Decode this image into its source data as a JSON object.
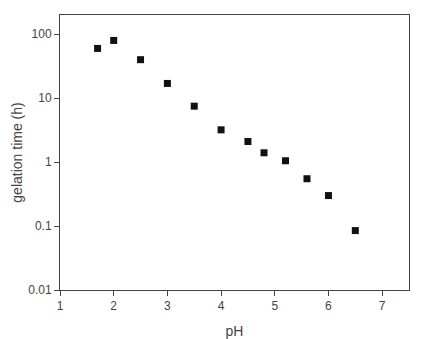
{
  "chart_data": {
    "type": "scatter",
    "x": [
      1.7,
      2.0,
      2.5,
      3.0,
      3.5,
      4.0,
      4.5,
      4.8,
      5.2,
      5.6,
      6.0,
      6.5
    ],
    "values": [
      60,
      80,
      40,
      17,
      7.5,
      3.2,
      2.1,
      1.4,
      1.05,
      0.55,
      0.3,
      0.085
    ],
    "xlabel": "pH",
    "ylabel": "gelation time (h)",
    "xlim": [
      1,
      7.5
    ],
    "ylim": [
      0.01,
      200
    ],
    "xticks": [
      1,
      2,
      3,
      4,
      5,
      6,
      7
    ],
    "yticks": [
      0.01,
      0.1,
      1,
      10,
      100
    ],
    "log": "y",
    "grid": false,
    "marker": "square",
    "color": "#111111"
  }
}
